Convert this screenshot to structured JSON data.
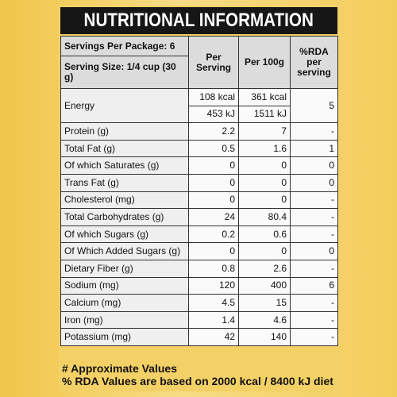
{
  "header": {
    "title": "NUTRITIONAL INFORMATION"
  },
  "table": {
    "servings_per_package": "Servings Per Package: 6",
    "serving_size": "Serving Size: 1/4 cup (30 g)",
    "columns": [
      "Per Serving",
      "Per 100g",
      "%RDA per serving"
    ],
    "energy": {
      "label": "Energy",
      "per_serving": [
        "108 kcal",
        "453 kJ"
      ],
      "per_100g": [
        "361 kcal",
        "1511 kJ"
      ],
      "rda": "5"
    },
    "rows": [
      {
        "label": "Protein (g)",
        "per_serving": "2.2",
        "per_100g": "7",
        "rda": "-"
      },
      {
        "label": "Total Fat (g)",
        "per_serving": "0.5",
        "per_100g": "1.6",
        "rda": "1"
      },
      {
        "label": "Of which Saturates (g)",
        "per_serving": "0",
        "per_100g": "0",
        "rda": "0"
      },
      {
        "label": "Trans Fat (g)",
        "per_serving": "0",
        "per_100g": "0",
        "rda": "0"
      },
      {
        "label": "Cholesterol (mg)",
        "per_serving": "0",
        "per_100g": "0",
        "rda": "-"
      },
      {
        "label": "Total Carbohydrates (g)",
        "per_serving": "24",
        "per_100g": "80.4",
        "rda": "-"
      },
      {
        "label": "Of which Sugars  (g)",
        "per_serving": "0.2",
        "per_100g": "0.6",
        "rda": "-"
      },
      {
        "label": "Of Which Added Sugars (g)",
        "per_serving": "0",
        "per_100g": "0",
        "rda": "0"
      },
      {
        "label": "Dietary Fiber (g)",
        "per_serving": "0.8",
        "per_100g": "2.6",
        "rda": "-"
      },
      {
        "label": "Sodium (mg)",
        "per_serving": "120",
        "per_100g": "400",
        "rda": "6"
      },
      {
        "label": "Calcium (mg)",
        "per_serving": "4.5",
        "per_100g": "15",
        "rda": "-"
      },
      {
        "label": "Iron (mg)",
        "per_serving": "1.4",
        "per_100g": "4.6",
        "rda": "-"
      },
      {
        "label": "Potassium (mg)",
        "per_serving": "42",
        "per_100g": "140",
        "rda": "-"
      }
    ]
  },
  "footer": {
    "notes": [
      "# Approximate Values",
      "% RDA Values are based on 2000 kcal / 8400 kJ diet"
    ]
  }
}
